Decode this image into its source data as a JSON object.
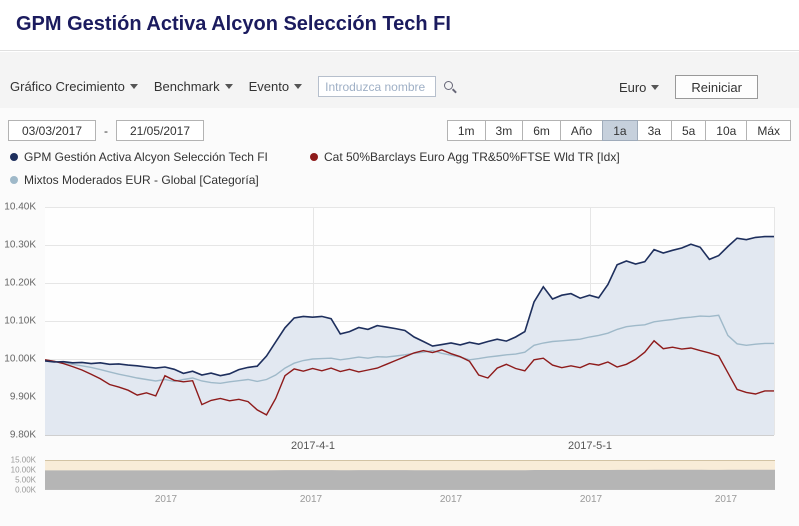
{
  "header": {
    "title": "GPM Gestión Activa Alcyon Selección Tech FI"
  },
  "toolbar": {
    "graph_menu": "Gráfico Crecimiento",
    "benchmark_menu": "Benchmark",
    "event_menu": "Evento",
    "search_placeholder": "Introduzca nombre",
    "currency_menu": "Euro",
    "reset_button": "Reiniciar"
  },
  "date_range": {
    "start": "03/03/2017",
    "separator": "-",
    "end": "21/05/2017"
  },
  "periods": {
    "options": [
      "1m",
      "3m",
      "6m",
      "Año",
      "1a",
      "3a",
      "5a",
      "10a",
      "Máx"
    ],
    "selected": "1a"
  },
  "legend": {
    "items": [
      {
        "label": "GPM Gestión Activa Alcyon Selección Tech FI",
        "color": "#1e2f5d"
      },
      {
        "label": "Cat 50%Barclays Euro Agg TR&50%FTSE Wld TR [Idx]",
        "color": "#8e1b1b"
      },
      {
        "label": "Mixtos Moderados EUR - Global [Categoría]",
        "color": "#9fb9c9"
      }
    ]
  },
  "colors": {
    "title": "#1b1b5e",
    "fund_line": "#1e2f5d",
    "fund_fill": "#e2e8f1",
    "index_line": "#8e1b1b",
    "category_line": "#9fb9c9",
    "selected_period_bg": "#c6d0dc",
    "navigator_bg": "#f8ecd8",
    "navigator_area": "#b5b5b5"
  },
  "chart_data": {
    "type": "line",
    "title": "",
    "x_axis": {
      "start_date": "2017-03-03",
      "end_date": "2017-05-21",
      "domain_days": [
        0,
        79
      ],
      "labels": [
        {
          "text": "2017-4-1",
          "day": 29
        },
        {
          "text": "2017-5-1",
          "day": 59
        }
      ]
    },
    "y_axis": {
      "ylim": [
        9800,
        10400
      ],
      "ticks": [
        {
          "value": 10400,
          "label": "10.40K"
        },
        {
          "value": 10300,
          "label": "10.30K"
        },
        {
          "value": 10200,
          "label": "10.20K"
        },
        {
          "value": 10100,
          "label": "10.10K"
        },
        {
          "value": 10000,
          "label": "10.00K"
        },
        {
          "value": 9900,
          "label": "9.90K"
        },
        {
          "value": 9800,
          "label": "9.80K"
        }
      ]
    },
    "series": [
      {
        "name": "GPM Gestión Activa Alcyon Selección Tech FI",
        "color": "#1e2f5d",
        "fill": "#e2e8f1",
        "values": [
          9995,
          9992,
          9993,
          9990,
          9991,
          9988,
          9990,
          9986,
          9987,
          9984,
          9982,
          9979,
          9976,
          9979,
          9973,
          9962,
          9968,
          9958,
          9963,
          9956,
          9961,
          9972,
          9978,
          9981,
          10008,
          10045,
          10082,
          10108,
          10112,
          10110,
          10112,
          10106,
          10066,
          10072,
          10083,
          10078,
          10088,
          10084,
          10080,
          10075,
          10058,
          10046,
          10034,
          10038,
          10042,
          10037,
          10044,
          10039,
          10046,
          10052,
          10047,
          10058,
          10072,
          10150,
          10190,
          10158,
          10168,
          10172,
          10160,
          10168,
          10161,
          10196,
          10248,
          10258,
          10250,
          10256,
          10288,
          10279,
          10286,
          10292,
          10302,
          10294,
          10262,
          10272,
          10296,
          10318,
          10314,
          10320,
          10322,
          10322
        ]
      },
      {
        "name": "Cat 50%Barclays Euro Agg TR&50%FTSE Wld TR [Idx]",
        "color": "#8e1b1b",
        "values": [
          9998,
          9994,
          9988,
          9980,
          9971,
          9960,
          9948,
          9933,
          9926,
          9918,
          9905,
          9911,
          9903,
          9956,
          9944,
          9940,
          9943,
          9880,
          9891,
          9896,
          9890,
          9894,
          9888,
          9866,
          9853,
          9896,
          9956,
          9974,
          9968,
          9975,
          9969,
          9976,
          9967,
          9973,
          9966,
          9971,
          9976,
          9986,
          9996,
          10006,
          10016,
          10022,
          10017,
          10024,
          10014,
          10006,
          9994,
          9958,
          9950,
          9976,
          9986,
          9975,
          9969,
          9998,
          10002,
          9984,
          9977,
          9982,
          9977,
          9988,
          9984,
          9992,
          9979,
          9986,
          9999,
          10018,
          10048,
          10027,
          10031,
          10026,
          10029,
          10022,
          10016,
          10008,
          9964,
          9920,
          9912,
          9908,
          9916,
          9916
        ]
      },
      {
        "name": "Mixtos Moderados EUR - Global [Categoría]",
        "color": "#9fb9c9",
        "values": [
          9998,
          9994,
          9990,
          9986,
          9982,
          9978,
          9972,
          9966,
          9960,
          9955,
          9950,
          9946,
          9942,
          9946,
          9941,
          9946,
          9950,
          9942,
          9938,
          9936,
          9940,
          9943,
          9946,
          9941,
          9946,
          9958,
          9976,
          9989,
          9996,
          10000,
          10001,
          10002,
          9998,
          10001,
          10005,
          10002,
          10006,
          10005,
          10008,
          10011,
          10015,
          10018,
          10022,
          10015,
          10010,
          10005,
          9998,
          10001,
          10005,
          10008,
          10011,
          10013,
          10018,
          10036,
          10042,
          10046,
          10048,
          10050,
          10052,
          10058,
          10062,
          10068,
          10078,
          10085,
          10088,
          10090,
          10098,
          10101,
          10104,
          10108,
          10110,
          10113,
          10112,
          10115,
          10062,
          10040,
          10036,
          10039,
          10041,
          10041
        ]
      }
    ]
  },
  "navigator": {
    "ylim": [
      0,
      15000
    ],
    "ticks": [
      {
        "value": 15000,
        "label": "15.00K"
      },
      {
        "value": 10000,
        "label": "10.00K"
      },
      {
        "value": 5000,
        "label": "5.00K"
      },
      {
        "value": 0,
        "label": "0.00K"
      }
    ],
    "x_labels": [
      "2017",
      "2017",
      "2017",
      "2017",
      "2017"
    ]
  }
}
